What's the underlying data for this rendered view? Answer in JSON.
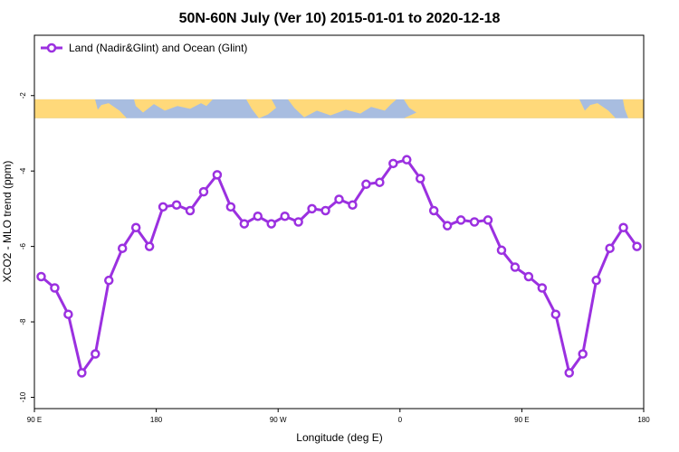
{
  "chart_data": {
    "type": "line",
    "title": "50N-60N July (Ver 10)   2015-01-01 to 2020-12-18",
    "xlabel": "Longitude (deg E)",
    "ylabel": "XCO2 - MLO trend (ppm)",
    "x_ticks": [
      {
        "value": 90,
        "label": "90 E"
      },
      {
        "value": 180,
        "label": "180"
      },
      {
        "value": 270,
        "label": "90 W"
      },
      {
        "value": 360,
        "label": "0"
      },
      {
        "value": 450,
        "label": "90 E"
      },
      {
        "value": 540,
        "label": "180"
      }
    ],
    "y_ticks": [
      -10,
      -8,
      -6,
      -4,
      -2
    ],
    "xlim": [
      90,
      540
    ],
    "ylim": [
      -10.3,
      -0.4
    ],
    "grid": false,
    "legend_position": "top-left",
    "line_color": "#9b30e0",
    "map_strip": {
      "ocean_color": "#a8bde0",
      "land_color": "#ffd97a",
      "y_range": [
        -2.1,
        -2.6
      ]
    },
    "series": [
      {
        "name": "Land (Nadir&Glint) and Ocean (Glint)",
        "x": [
          95,
          105,
          115,
          125,
          135,
          145,
          155,
          165,
          175,
          185,
          195,
          205,
          215,
          225,
          235,
          245,
          255,
          265,
          275,
          285,
          295,
          305,
          315,
          325,
          335,
          345,
          355,
          365,
          375,
          385,
          395,
          405,
          415,
          425,
          435,
          445,
          455,
          465,
          475,
          485,
          495,
          505,
          515,
          525,
          535
        ],
        "values": [
          -6.8,
          -7.1,
          -7.8,
          -9.35,
          -8.85,
          -6.9,
          -6.05,
          -5.5,
          -6.0,
          -4.95,
          -4.9,
          -5.05,
          -4.55,
          -4.1,
          -4.95,
          -5.4,
          -5.2,
          -5.4,
          -5.2,
          -5.35,
          -5.0,
          -5.05,
          -4.75,
          -4.9,
          -4.35,
          -4.3,
          -3.8,
          -3.7,
          -4.2,
          -5.05,
          -5.45,
          -5.3,
          -5.35,
          -5.3,
          -6.1,
          -6.55,
          -6.8,
          -7.1,
          -7.8,
          -9.35,
          -8.85,
          -6.9,
          -6.05,
          -5.5,
          -6.0
        ]
      }
    ]
  }
}
